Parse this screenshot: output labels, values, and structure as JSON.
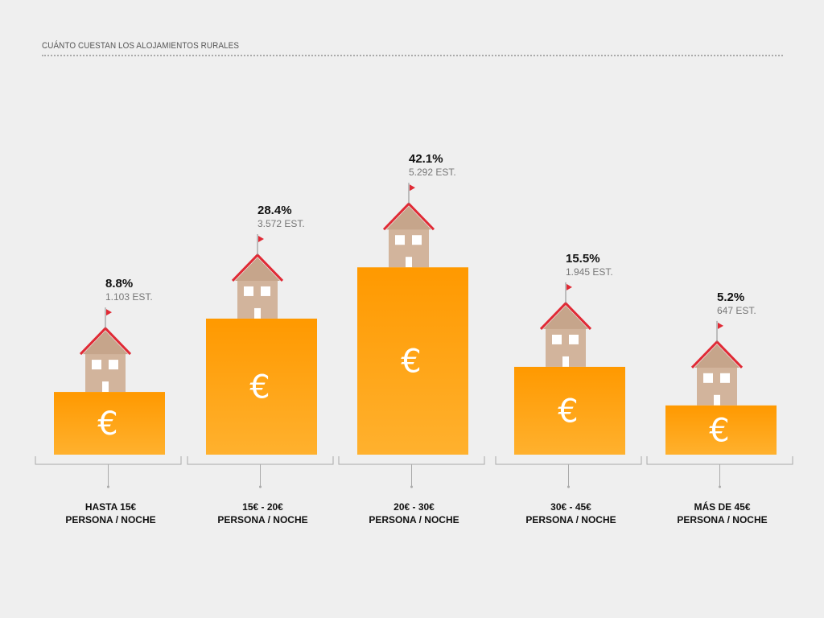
{
  "chart_data": {
    "type": "bar",
    "title": "CUÁNTO CUESTAN LOS ALOJAMIENTOS RURALES",
    "categories": [
      [
        "HASTA 15€",
        "PERSONA / NOCHE"
      ],
      [
        "15€ - 20€",
        "PERSONA / NOCHE"
      ],
      [
        "20€ - 30€",
        "PERSONA / NOCHE"
      ],
      [
        "30€ - 45€",
        "PERSONA / NOCHE"
      ],
      [
        "MÁS DE 45€",
        "PERSONA / NOCHE"
      ]
    ],
    "values": [
      8.8,
      28.4,
      42.1,
      15.5,
      5.2
    ],
    "value_labels": [
      "8.8%",
      "28.4%",
      "42.1%",
      "15.5%",
      "5.2%"
    ],
    "count_labels": [
      "1.103 EST.",
      "3.572 EST.",
      "5.292 EST.",
      "1.945 EST.",
      "647 EST."
    ],
    "bar_symbol": "€",
    "colors": {
      "bar_top": "#ff9900",
      "bar_bottom": "#ffb12e",
      "house": "#d2b49c",
      "roof": "#e02a35",
      "flag": "#e02a35"
    },
    "grid": false
  }
}
